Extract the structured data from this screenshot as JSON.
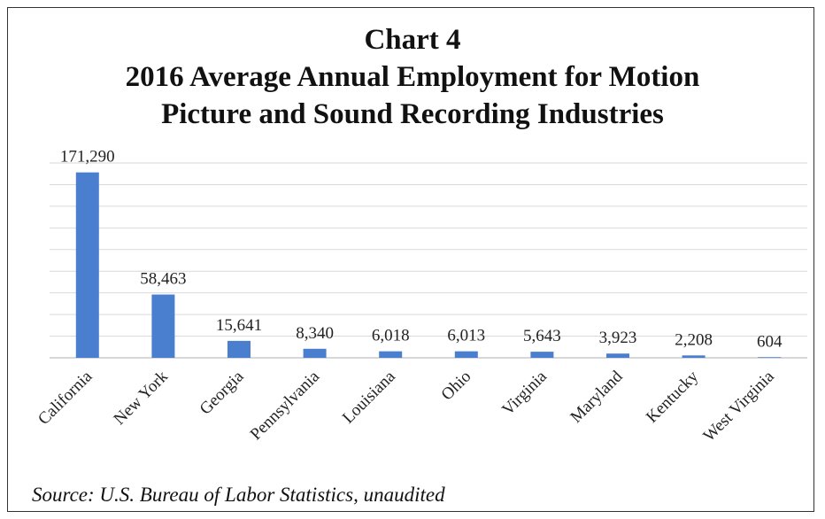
{
  "chart_data": {
    "type": "bar",
    "title_lines": [
      "Chart 4",
      "2016 Average Annual Employment for Motion",
      "Picture and Sound Recording Industries"
    ],
    "categories": [
      "California",
      "New York",
      "Georgia",
      "Pennsylvania",
      "Louisiana",
      "Ohio",
      "Virginia",
      "Maryland",
      "Kentucky",
      "West Virginia"
    ],
    "values": [
      171290,
      58463,
      15641,
      8340,
      6018,
      6013,
      5643,
      3923,
      2208,
      604
    ],
    "value_labels": [
      "171,290",
      "58,463",
      "15,641",
      "8,340",
      "6,018",
      "6,013",
      "5,643",
      "3,923",
      "2,208",
      "604"
    ],
    "ylim": [
      0,
      180000
    ],
    "gridlines": true,
    "y_axis_labels_shown": false,
    "bar_color": "#4a7fd0",
    "gridline_color": "#d9d9d9",
    "source_note": "Source: U.S. Bureau of Labor Statistics, unaudited"
  }
}
